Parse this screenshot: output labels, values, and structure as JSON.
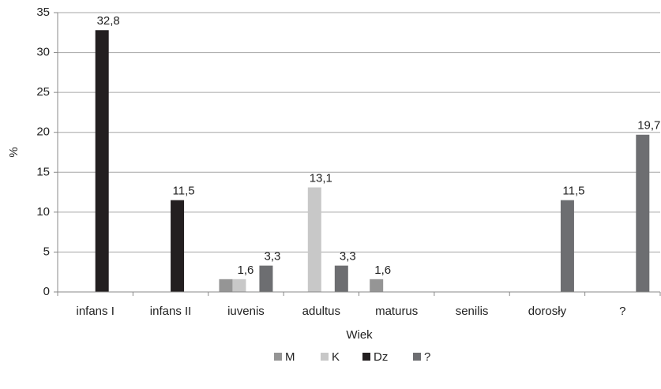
{
  "chart_data": {
    "type": "bar",
    "x_label": "Wiek",
    "y_label": "%",
    "categories": [
      "infans I",
      "infans II",
      "iuvenis",
      "adultus",
      "maturus",
      "senilis",
      "dorosły",
      "?"
    ],
    "series": [
      {
        "name": "M",
        "color": "#959595",
        "values": [
          null,
          null,
          1.6,
          null,
          1.6,
          null,
          null,
          null
        ],
        "value_labels": [
          null,
          null,
          null,
          null,
          "1,6",
          null,
          null,
          null
        ]
      },
      {
        "name": "K",
        "color": "#c8c8c8",
        "values": [
          null,
          null,
          1.6,
          13.1,
          null,
          null,
          null,
          null
        ],
        "value_labels": [
          null,
          null,
          "1,6",
          "13,1",
          null,
          null,
          null,
          null
        ]
      },
      {
        "name": "Dz",
        "color": "#231f20",
        "values": [
          32.8,
          11.5,
          null,
          null,
          null,
          null,
          null,
          null
        ],
        "value_labels": [
          "32,8",
          "11,5",
          null,
          null,
          null,
          null,
          null,
          null
        ]
      },
      {
        "name": "?",
        "color": "#6d6e71",
        "values": [
          null,
          null,
          3.3,
          3.3,
          null,
          null,
          11.5,
          19.7
        ],
        "value_labels": [
          null,
          null,
          "3,3",
          "3,3",
          null,
          null,
          "11,5",
          "19,7"
        ]
      }
    ],
    "ylim": [
      0,
      35
    ],
    "yticks": [
      0,
      5,
      10,
      15,
      20,
      25,
      30,
      35
    ],
    "grid": true,
    "legend": "bottom"
  }
}
